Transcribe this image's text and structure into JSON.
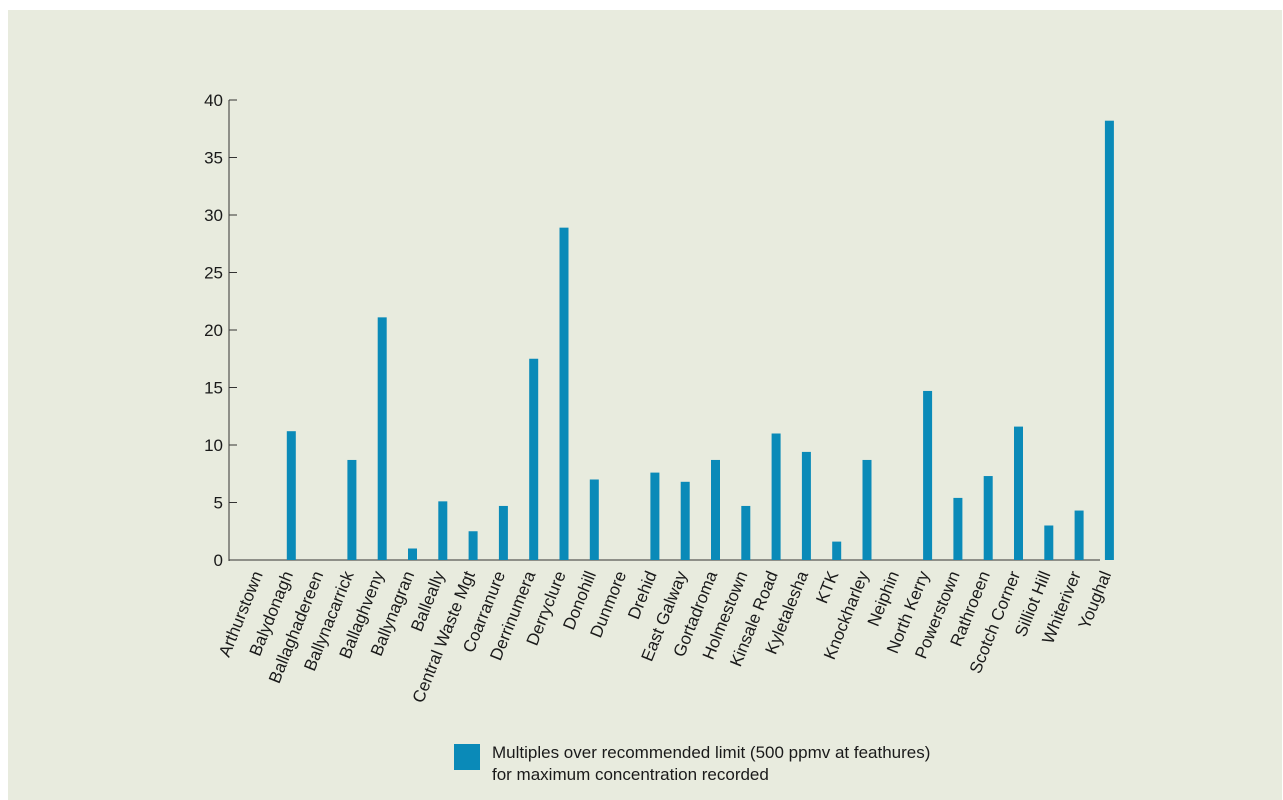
{
  "colors": {
    "background": "#e8ebde",
    "bar": "#0a8ab8",
    "axis": "#333333"
  },
  "chart_data": {
    "type": "bar",
    "categories": [
      "Arthurstown",
      "Balydonagh",
      "Ballaghadereen",
      "Ballynacarrick",
      "Ballaghveny",
      "Ballynagran",
      "Balleally",
      "Central Waste Mgt",
      "Coarranure",
      "Derrinumera",
      "Derryclure",
      "Donohill",
      "Dunmore",
      "Drehid",
      "East Galway",
      "Gortadroma",
      "Holmestown",
      "Kinsale Road",
      "Kyletalesha",
      "KTK",
      "Knockharley",
      "Neiphin",
      "North Kerry",
      "Powerstown",
      "Rathroeen",
      "Scotch Corner",
      "Silliot Hill",
      "Whiteriver",
      "Youghal"
    ],
    "series": [
      {
        "name": "Multiples over recommended limit (500 ppmv at feathures) for maximum concentration recorded",
        "values": [
          0,
          11.2,
          0,
          8.7,
          21.1,
          1.0,
          5.1,
          2.5,
          4.7,
          17.5,
          28.9,
          7.0,
          0,
          7.6,
          6.8,
          8.7,
          4.7,
          11.0,
          9.4,
          1.6,
          8.7,
          0,
          14.7,
          5.4,
          7.3,
          11.6,
          3.0,
          4.3,
          38.2
        ]
      }
    ],
    "yticks": [
      "0",
      "5",
      "10",
      "15",
      "20",
      "25",
      "30",
      "35",
      "40"
    ],
    "ylim": [
      0,
      40
    ],
    "grid": false,
    "legend_position": "bottom-center",
    "title": "",
    "xlabel": "",
    "ylabel": ""
  }
}
